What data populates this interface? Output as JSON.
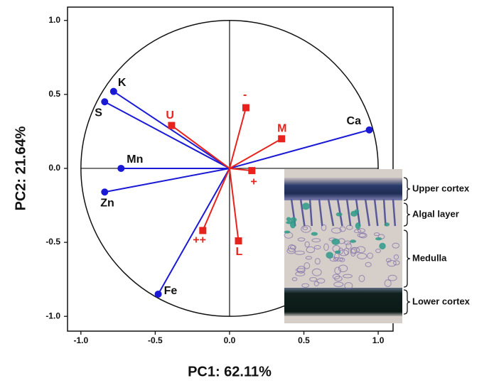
{
  "chart_data": {
    "type": "biplot",
    "x_label": "PC1: 62.11%",
    "y_label": "PC2: 21.64%",
    "xlim": [
      -1.09,
      1.1
    ],
    "ylim": [
      -1.1,
      1.09
    ],
    "xticks": [
      {
        "value": -1,
        "label": "-1.0"
      },
      {
        "value": -0.5,
        "label": "-0.5"
      },
      {
        "value": 0,
        "label": "0.0"
      },
      {
        "value": 0.5,
        "label": "0.5"
      },
      {
        "value": 1,
        "label": "1.0"
      }
    ],
    "yticks": [
      {
        "value": -1,
        "label": "-1.0"
      },
      {
        "value": -0.5,
        "label": "-0.5"
      },
      {
        "value": 0,
        "label": "0.0"
      },
      {
        "value": 0.5,
        "label": "0.5"
      },
      {
        "value": 1,
        "label": "1.0"
      }
    ],
    "loadings": {
      "color": "#1a1ad6",
      "labels": [
        "K",
        "S",
        "Mn",
        "Zn",
        "Fe",
        "Ca"
      ],
      "x": [
        -0.78,
        -0.84,
        -0.73,
        -0.84,
        -0.48,
        0.94
      ],
      "y": [
        0.52,
        0.45,
        0.0,
        -0.16,
        -0.85,
        0.26
      ]
    },
    "treatments": {
      "color": "#e8231d",
      "labels": [
        "U",
        "-",
        "M",
        "+",
        "++",
        "L"
      ],
      "x": [
        -0.39,
        0.11,
        0.35,
        0.15,
        -0.18,
        0.06
      ],
      "y": [
        0.29,
        0.41,
        0.2,
        -0.015,
        -0.42,
        -0.49
      ]
    },
    "inset": {
      "labels": [
        "Upper cortex",
        "Algal layer",
        "Medulla",
        "Lower cortex"
      ]
    }
  }
}
